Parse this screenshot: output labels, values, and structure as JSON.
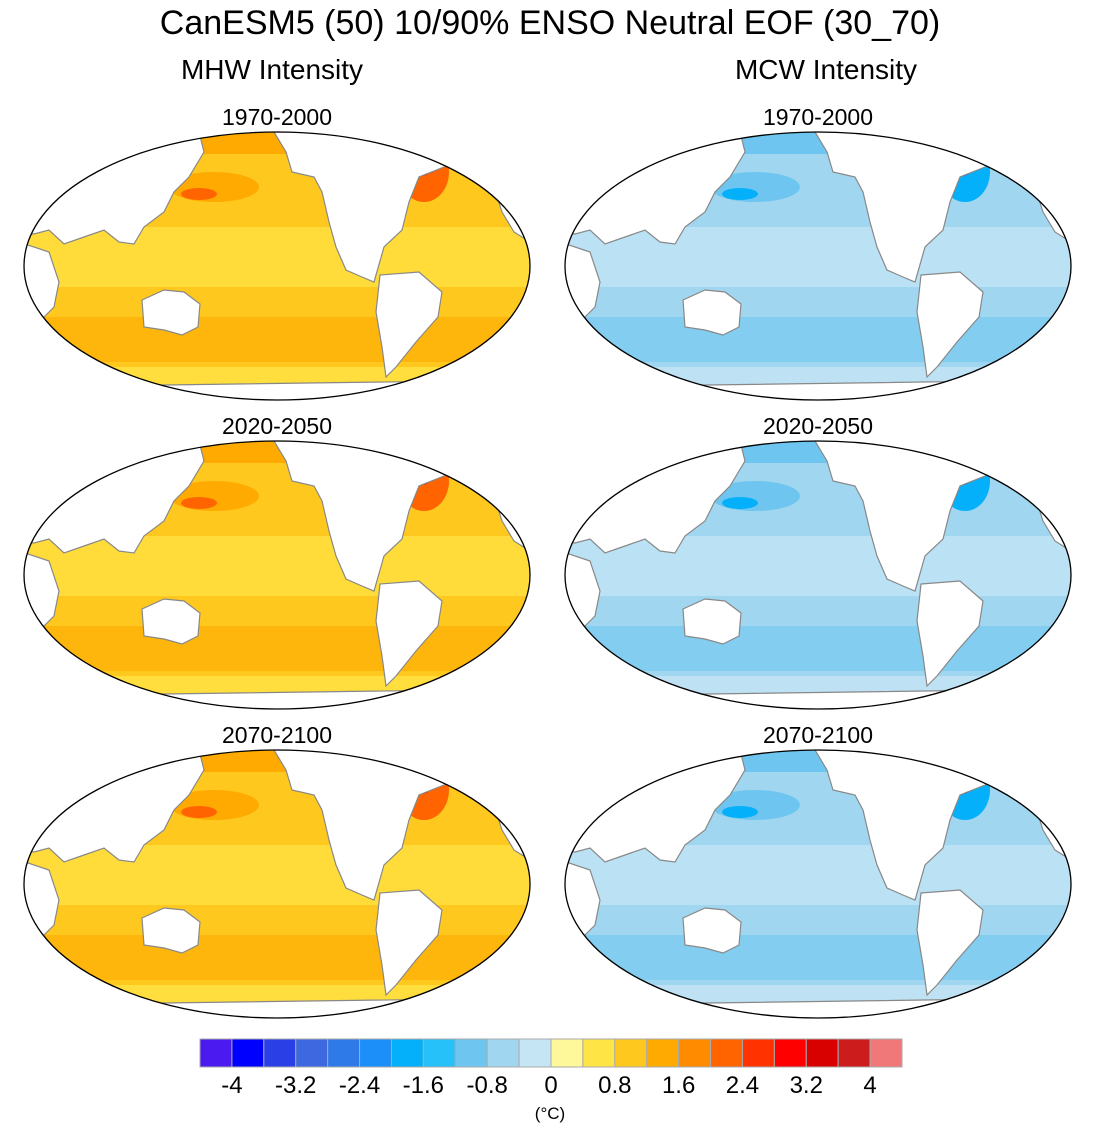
{
  "title": "CanESM5 (50) 10/90% ENSO Neutral EOF (30_70)",
  "columns": [
    {
      "label": "MHW Intensity",
      "kind": "warm"
    },
    {
      "label": "MCW Intensity",
      "kind": "cold"
    }
  ],
  "rows": [
    "1970-2000",
    "2020-2050",
    "2070-2100"
  ],
  "colorbar": {
    "boundaries": [
      -4,
      -3.6,
      -3.2,
      -2.8,
      -2.4,
      -2,
      -1.6,
      -1.2,
      -0.8,
      -0.4,
      0,
      0.4,
      0.8,
      1.2,
      1.6,
      2,
      2.4,
      2.8,
      3.2,
      3.6,
      4
    ],
    "tick_labels": [
      "-4",
      "-3.2",
      "-2.4",
      "-1.6",
      "-0.8",
      "0",
      "0.8",
      "1.6",
      "2.4",
      "3.2",
      "4"
    ],
    "unit": "(°C)",
    "colors": [
      "#4b1af0",
      "#0000ff",
      "#2a3fe6",
      "#3d68e0",
      "#2e7ae8",
      "#1c8ff8",
      "#04b0fa",
      "#27c1fa",
      "#6ec6f0",
      "#a1d6f0",
      "#c5e5f5",
      "#fff89a",
      "#ffe446",
      "#ffc81e",
      "#ffaa00",
      "#ff8c00",
      "#ff6400",
      "#ff3200",
      "#ff0000",
      "#d90000",
      "#cc1c1c",
      "#f07878"
    ]
  }
}
